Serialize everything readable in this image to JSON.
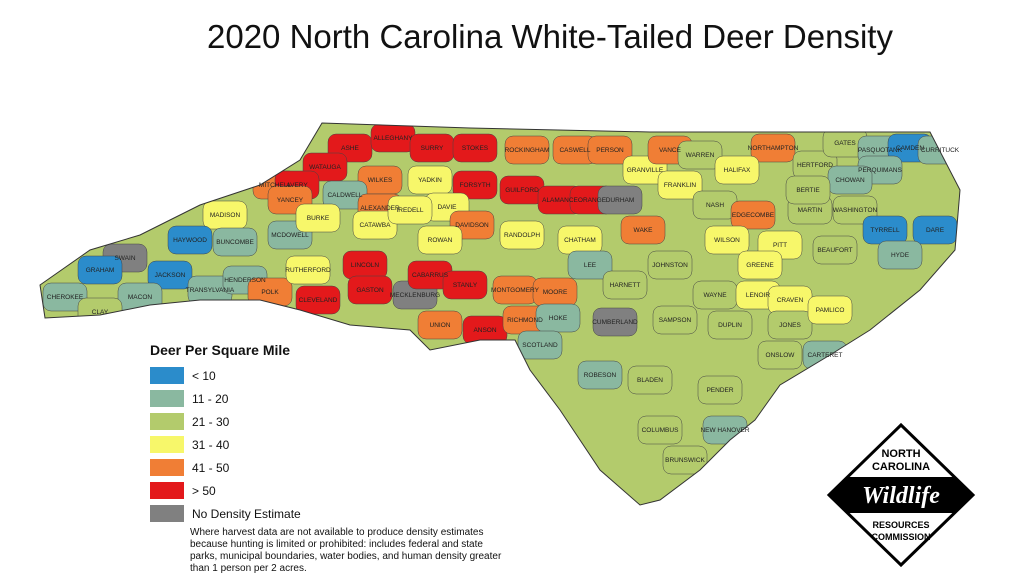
{
  "title": "2020 North Carolina White-Tailed Deer Density",
  "legend": {
    "title": "Deer Per Square Mile",
    "classes": [
      {
        "key": "blue",
        "label": "< 10",
        "color": "#2b8ccb"
      },
      {
        "key": "teal",
        "label": "11 - 20",
        "color": "#8ab8a0"
      },
      {
        "key": "green",
        "label": "21 - 30",
        "color": "#b3cb6c"
      },
      {
        "key": "yellow",
        "label": "31 - 40",
        "color": "#f7f76a"
      },
      {
        "key": "orange",
        "label": "41 - 50",
        "color": "#f07e35"
      },
      {
        "key": "red",
        "label": "> 50",
        "color": "#e3191b"
      },
      {
        "key": "grey",
        "label": "No Density Estimate",
        "color": "#808080"
      }
    ],
    "note": "Where harvest data are not available to produce density estimates because hunting is limited or prohibited: includes federal and state parks, municipal boundaries, water bodies, and human density greater than 1 person per 2 acres."
  },
  "logo": {
    "top": "NORTH CAROLINA",
    "script": "Wildlife",
    "bottom": "RESOURCES COMMISSION"
  },
  "counties": [
    {
      "name": "ASHE",
      "class": "red"
    },
    {
      "name": "ALLEGHANY",
      "class": "red"
    },
    {
      "name": "SURRY",
      "class": "red"
    },
    {
      "name": "STOKES",
      "class": "red"
    },
    {
      "name": "ROCKINGHAM",
      "class": "orange"
    },
    {
      "name": "CASWELL",
      "class": "orange"
    },
    {
      "name": "PERSON",
      "class": "orange"
    },
    {
      "name": "GRANVILLE",
      "class": "yellow"
    },
    {
      "name": "VANCE",
      "class": "orange"
    },
    {
      "name": "WARREN",
      "class": "green"
    },
    {
      "name": "NORTHAMPTON",
      "class": "orange"
    },
    {
      "name": "HERTFORD",
      "class": "green"
    },
    {
      "name": "GATES",
      "class": "green"
    },
    {
      "name": "PASQUOTANK",
      "class": "teal"
    },
    {
      "name": "CAMDEN",
      "class": "blue"
    },
    {
      "name": "CURRITUCK",
      "class": "teal"
    },
    {
      "name": "PERQUIMANS",
      "class": "teal"
    },
    {
      "name": "CHOWAN",
      "class": "teal"
    },
    {
      "name": "WATAUGA",
      "class": "red"
    },
    {
      "name": "WILKES",
      "class": "orange"
    },
    {
      "name": "YADKIN",
      "class": "yellow"
    },
    {
      "name": "FORSYTH",
      "class": "red"
    },
    {
      "name": "GUILFORD",
      "class": "red"
    },
    {
      "name": "ALAMANCE",
      "class": "red"
    },
    {
      "name": "ORANGE",
      "class": "red"
    },
    {
      "name": "DURHAM",
      "class": "grey"
    },
    {
      "name": "FRANKLIN",
      "class": "yellow"
    },
    {
      "name": "HALIFAX",
      "class": "yellow"
    },
    {
      "name": "MITCHELL",
      "class": "orange"
    },
    {
      "name": "AVERY",
      "class": "red"
    },
    {
      "name": "YANCEY",
      "class": "orange"
    },
    {
      "name": "CALDWELL",
      "class": "teal"
    },
    {
      "name": "ALEXANDER",
      "class": "orange"
    },
    {
      "name": "DAVIE",
      "class": "yellow"
    },
    {
      "name": "DAVIDSON",
      "class": "orange"
    },
    {
      "name": "RANDOLPH",
      "class": "yellow"
    },
    {
      "name": "CHATHAM",
      "class": "yellow"
    },
    {
      "name": "WAKE",
      "class": "orange"
    },
    {
      "name": "NASH",
      "class": "green"
    },
    {
      "name": "EDGECOMBE",
      "class": "orange"
    },
    {
      "name": "MARTIN",
      "class": "green"
    },
    {
      "name": "BERTIE",
      "class": "green"
    },
    {
      "name": "WASHINGTON",
      "class": "green"
    },
    {
      "name": "TYRRELL",
      "class": "blue"
    },
    {
      "name": "DARE",
      "class": "blue"
    },
    {
      "name": "HYDE",
      "class": "teal"
    },
    {
      "name": "BEAUFORT",
      "class": "green"
    },
    {
      "name": "MADISON",
      "class": "yellow"
    },
    {
      "name": "BUNCOMBE",
      "class": "teal"
    },
    {
      "name": "MCDOWELL",
      "class": "teal"
    },
    {
      "name": "BURKE",
      "class": "yellow"
    },
    {
      "name": "CATAWBA",
      "class": "yellow"
    },
    {
      "name": "IREDELL",
      "class": "yellow"
    },
    {
      "name": "ROWAN",
      "class": "yellow"
    },
    {
      "name": "WILSON",
      "class": "yellow"
    },
    {
      "name": "PITT",
      "class": "yellow"
    },
    {
      "name": "JOHNSTON",
      "class": "green"
    },
    {
      "name": "GREENE",
      "class": "yellow"
    },
    {
      "name": "HAYWOOD",
      "class": "blue"
    },
    {
      "name": "SWAIN",
      "class": "grey"
    },
    {
      "name": "GRAHAM",
      "class": "blue"
    },
    {
      "name": "JACKSON",
      "class": "blue"
    },
    {
      "name": "MACON",
      "class": "teal"
    },
    {
      "name": "CHEROKEE",
      "class": "teal"
    },
    {
      "name": "CLAY",
      "class": "green"
    },
    {
      "name": "TRANSYLVANIA",
      "class": "teal"
    },
    {
      "name": "HENDERSON",
      "class": "teal"
    },
    {
      "name": "POLK",
      "class": "orange"
    },
    {
      "name": "RUTHERFORD",
      "class": "yellow"
    },
    {
      "name": "CLEVELAND",
      "class": "red"
    },
    {
      "name": "LINCOLN",
      "class": "red"
    },
    {
      "name": "GASTON",
      "class": "red"
    },
    {
      "name": "MECKLENBURG",
      "class": "grey"
    },
    {
      "name": "CABARRUS",
      "class": "red"
    },
    {
      "name": "STANLY",
      "class": "red"
    },
    {
      "name": "UNION",
      "class": "orange"
    },
    {
      "name": "ANSON",
      "class": "red"
    },
    {
      "name": "MONTGOMERY",
      "class": "orange"
    },
    {
      "name": "MOORE",
      "class": "orange"
    },
    {
      "name": "RICHMOND",
      "class": "orange"
    },
    {
      "name": "LEE",
      "class": "teal"
    },
    {
      "name": "HARNETT",
      "class": "green"
    },
    {
      "name": "WAYNE",
      "class": "green"
    },
    {
      "name": "LENOIR",
      "class": "yellow"
    },
    {
      "name": "CRAVEN",
      "class": "yellow"
    },
    {
      "name": "JONES",
      "class": "green"
    },
    {
      "name": "PAMLICO",
      "class": "yellow"
    },
    {
      "name": "HOKE",
      "class": "teal"
    },
    {
      "name": "SCOTLAND",
      "class": "teal"
    },
    {
      "name": "CUMBERLAND",
      "class": "grey"
    },
    {
      "name": "SAMPSON",
      "class": "green"
    },
    {
      "name": "DUPLIN",
      "class": "green"
    },
    {
      "name": "ONSLOW",
      "class": "green"
    },
    {
      "name": "CARTERET",
      "class": "teal"
    },
    {
      "name": "ROBESON",
      "class": "teal"
    },
    {
      "name": "BLADEN",
      "class": "green"
    },
    {
      "name": "PENDER",
      "class": "green"
    },
    {
      "name": "COLUMBUS",
      "class": "green"
    },
    {
      "name": "NEW HANOVER",
      "class": "teal"
    },
    {
      "name": "BRUNSWICK",
      "class": "green"
    }
  ]
}
